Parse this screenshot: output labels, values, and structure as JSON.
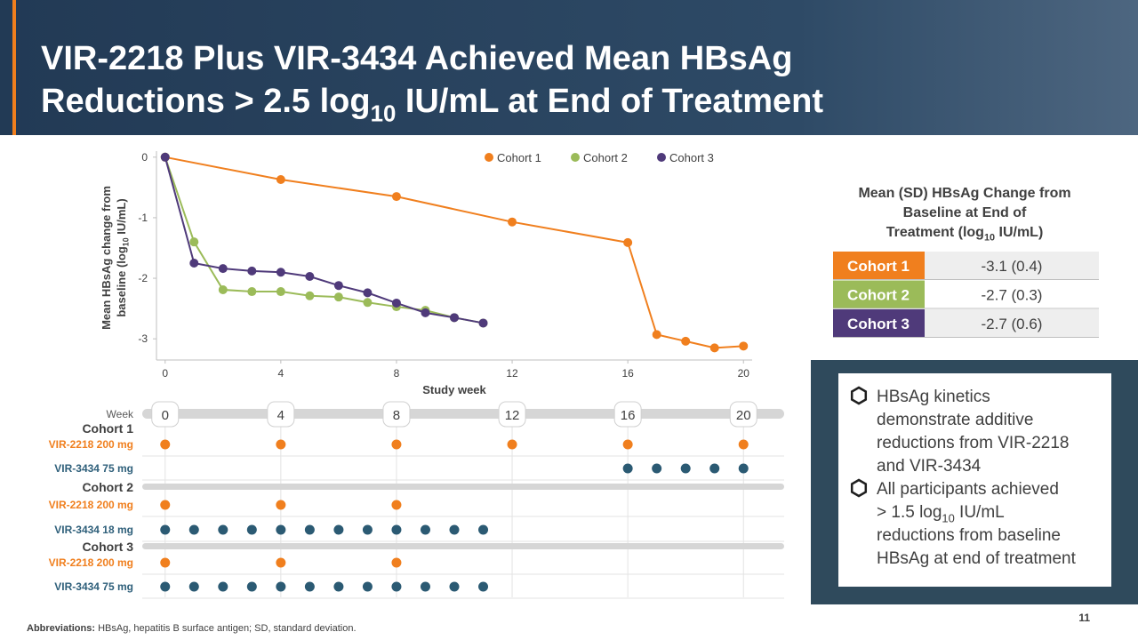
{
  "header": {
    "title_line1": "VIR-2218 Plus VIR-3434 Achieved Mean HBsAg",
    "title_line2": [
      "Reductions > 2.5 log",
      "10",
      " IU/mL at End of Treatment"
    ]
  },
  "chart_data": {
    "type": "line",
    "x_label": "Study week",
    "y_label_line1": "Mean HBsAg change from",
    "y_label_line2": [
      "baseline (log",
      "10",
      " IU/mL)"
    ],
    "xlim": [
      -0.3,
      20.3
    ],
    "ylim": [
      -3.35,
      0.1
    ],
    "xticks": [
      0,
      4,
      8,
      12,
      16,
      20
    ],
    "yticks": [
      0,
      -1,
      -2,
      -3
    ],
    "legend": "top-right",
    "series": [
      {
        "name": "Cohort 1",
        "color": "#f07f1e",
        "x": [
          0,
          4,
          8,
          12,
          16,
          17,
          18,
          19,
          20
        ],
        "values": [
          0,
          -0.37,
          -0.65,
          -1.07,
          -1.41,
          -2.93,
          -3.04,
          -3.15,
          -3.12
        ]
      },
      {
        "name": "Cohort 2",
        "color": "#9bbb59",
        "x": [
          0,
          1,
          2,
          3,
          4,
          5,
          6,
          7,
          8,
          9,
          10,
          11
        ],
        "values": [
          0,
          -1.4,
          -2.19,
          -2.22,
          -2.22,
          -2.29,
          -2.31,
          -2.4,
          -2.47,
          -2.53,
          -2.65,
          -2.74
        ]
      },
      {
        "name": "Cohort 3",
        "color": "#4f3a7a",
        "x": [
          0,
          1,
          2,
          3,
          4,
          5,
          6,
          7,
          8,
          9,
          10,
          11
        ],
        "values": [
          0,
          -1.75,
          -1.84,
          -1.88,
          -1.9,
          -1.97,
          -2.12,
          -2.24,
          -2.41,
          -2.57,
          -2.65,
          -2.74
        ]
      }
    ]
  },
  "table": {
    "title": [
      "Mean (SD) HBsAg Change from",
      "Baseline at End of",
      [
        "Treatment  (log",
        "10",
        " IU/mL)"
      ]
    ],
    "rows": [
      [
        "Cohort 1",
        "-3.1 (0.4)"
      ],
      [
        "Cohort 2",
        "-2.7 (0.3)"
      ],
      [
        "Cohort 3",
        "-2.7 (0.6)"
      ]
    ],
    "colors": [
      "#f07f1e",
      "#9bbb59",
      "#4f3a7a"
    ]
  },
  "schedule": {
    "week_label": "Week",
    "weeks": [
      0,
      4,
      8,
      12,
      16,
      20
    ],
    "groups": [
      {
        "name": "Cohort 1",
        "rows": [
          {
            "name": "VIR-2218 200 mg",
            "weeks": [
              0,
              4,
              8,
              12,
              16,
              20
            ]
          },
          {
            "name": "VIR-3434 75 mg",
            "weeks": [
              16,
              17,
              18,
              19,
              20
            ]
          }
        ]
      },
      {
        "name": "Cohort 2",
        "rows": [
          {
            "name": "VIR-2218 200 mg",
            "weeks": [
              0,
              4,
              8
            ]
          },
          {
            "name": "VIR-3434 18 mg",
            "weeks": [
              0,
              1,
              2,
              3,
              4,
              5,
              6,
              7,
              8,
              9,
              10,
              11
            ]
          }
        ]
      },
      {
        "name": "Cohort 3",
        "rows": [
          {
            "name": "VIR-2218 200 mg",
            "weeks": [
              0,
              4,
              8
            ]
          },
          {
            "name": "VIR-3434 75 mg",
            "weeks": [
              0,
              1,
              2,
              3,
              4,
              5,
              6,
              7,
              8,
              9,
              10,
              11
            ]
          }
        ]
      }
    ]
  },
  "bullets": [
    {
      "lines": [
        "HBsAg kinetics",
        "demonstrate additive",
        "reductions from VIR-2218",
        "and VIR-3434"
      ]
    },
    {
      "lines": [
        "All participants achieved",
        [
          "> 1.5 log",
          "10",
          " IU/mL"
        ],
        "reductions from baseline",
        "HBsAg at end of treatment"
      ]
    }
  ],
  "footnote": {
    "label": "Abbreviations:",
    "text": " HBsAg, hepatitis B surface antigen; SD, standard deviation."
  },
  "page_number": "11"
}
